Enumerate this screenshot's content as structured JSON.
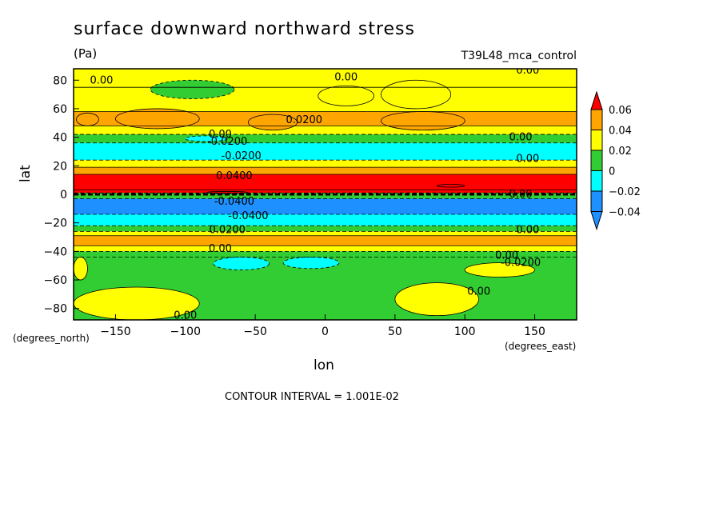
{
  "chart_data": {
    "type": "heatmap",
    "title": "surface downward northward stress",
    "units": "(Pa)",
    "run_label": "T39L48_mca_control",
    "xlabel": "lon",
    "ylabel": "lat",
    "x_units_label": "(degrees_east)",
    "y_units_label": "(degrees_north)",
    "xlim": [
      -180,
      180
    ],
    "ylim": [
      -88,
      88
    ],
    "x_ticks": [
      -150,
      -100,
      -50,
      0,
      50,
      100,
      150
    ],
    "y_ticks": [
      80,
      60,
      40,
      20,
      0,
      -20,
      -40,
      -60,
      -80
    ],
    "contour_interval_text": "CONTOUR INTERVAL = 1.001E-02",
    "colorbar": {
      "levels": [
        -0.04,
        -0.02,
        0,
        0.02,
        0.04,
        0.06
      ],
      "labels": [
        "-0.04",
        "-0.02",
        "0",
        "0.02",
        "0.04",
        "0.06"
      ],
      "colors": [
        "#1e90ff",
        "#00ffff",
        "#32cd32",
        "#ffff00",
        "#ffa500",
        "#ff0000"
      ]
    },
    "zonal_bands": [
      {
        "lat": [
          75,
          88
        ],
        "value": 0.005
      },
      {
        "lat": [
          58,
          75
        ],
        "value": 0.01
      },
      {
        "lat": [
          48,
          58
        ],
        "value": 0.025
      },
      {
        "lat": [
          42,
          48
        ],
        "value": 0.01
      },
      {
        "lat": [
          36,
          42
        ],
        "value": -0.01
      },
      {
        "lat": [
          24,
          36
        ],
        "value": -0.025
      },
      {
        "lat": [
          19,
          24
        ],
        "value": 0.005
      },
      {
        "lat": [
          14,
          19
        ],
        "value": 0.025
      },
      {
        "lat": [
          3,
          14
        ],
        "value": 0.045
      },
      {
        "lat": [
          1,
          3
        ],
        "value": 0.05
      },
      {
        "lat": [
          -3,
          1
        ],
        "value": -0.01
      },
      {
        "lat": [
          -14,
          -3
        ],
        "value": -0.05
      },
      {
        "lat": [
          -22,
          -14
        ],
        "value": -0.035
      },
      {
        "lat": [
          -26,
          -22
        ],
        "value": -0.01
      },
      {
        "lat": [
          -29,
          -26
        ],
        "value": 0.01
      },
      {
        "lat": [
          -36,
          -29
        ],
        "value": 0.03
      },
      {
        "lat": [
          -40,
          -36
        ],
        "value": 0.015
      },
      {
        "lat": [
          -44,
          -40
        ],
        "value": -0.005
      },
      {
        "lat": [
          -88,
          -44
        ],
        "value": -0.01
      }
    ],
    "features": [
      {
        "type": "patch",
        "lon": [
          -125,
          -65
        ],
        "lat": [
          67,
          80
        ],
        "value": -0.01
      },
      {
        "type": "patch",
        "lon": [
          40,
          90
        ],
        "lat": [
          60,
          80
        ],
        "value": 0.005
      },
      {
        "type": "patch",
        "lon": [
          -5,
          35
        ],
        "lat": [
          62,
          76
        ],
        "value": 0.005
      },
      {
        "type": "patch",
        "lon": [
          -178,
          -162
        ],
        "lat": [
          48,
          57
        ],
        "value": 0.025
      },
      {
        "type": "patch",
        "lon": [
          -150,
          -90
        ],
        "lat": [
          46,
          60
        ],
        "value": 0.025
      },
      {
        "type": "patch",
        "lon": [
          -55,
          -20
        ],
        "lat": [
          45,
          56
        ],
        "value": 0.025
      },
      {
        "type": "patch",
        "lon": [
          40,
          100
        ],
        "lat": [
          45,
          58
        ],
        "value": 0.025
      },
      {
        "type": "patch",
        "lon": [
          -100,
          -70
        ],
        "lat": [
          37,
          41
        ],
        "value": -0.03
      },
      {
        "type": "patch",
        "lon": [
          -30,
          10
        ],
        "lat": [
          -52,
          -44
        ],
        "value": -0.03
      },
      {
        "type": "patch",
        "lon": [
          -80,
          -40
        ],
        "lat": [
          -53,
          -44
        ],
        "value": -0.025
      },
      {
        "type": "patch",
        "lon": [
          100,
          150
        ],
        "lat": [
          -58,
          -48
        ],
        "value": 0.005
      },
      {
        "type": "patch",
        "lon": [
          50,
          110
        ],
        "lat": [
          -85,
          -62
        ],
        "value": 0.005
      },
      {
        "type": "patch",
        "lon": [
          -180,
          -90
        ],
        "lat": [
          -88,
          -65
        ],
        "value": 0.005
      },
      {
        "type": "patch",
        "lon": [
          -180,
          -170
        ],
        "lat": [
          -60,
          -44
        ],
        "value": 0.005
      },
      {
        "type": "patch",
        "lon": [
          -85,
          -55
        ],
        "lat": [
          0.5,
          2
        ],
        "value": 0.065
      },
      {
        "type": "patch",
        "lon": [
          80,
          100
        ],
        "lat": [
          5,
          7
        ],
        "value": 0.065
      }
    ],
    "contour_labels": [
      {
        "text": "0.00",
        "lon": -160,
        "lat": 80
      },
      {
        "text": "0.00",
        "lon": 15,
        "lat": 82
      },
      {
        "text": "0.00",
        "lon": 145,
        "lat": 87
      },
      {
        "text": "0.0200",
        "lon": -15,
        "lat": 52
      },
      {
        "text": "0.00",
        "lon": -75,
        "lat": 42
      },
      {
        "text": "-0.0200",
        "lon": -70,
        "lat": 37
      },
      {
        "text": "0.00",
        "lon": 140,
        "lat": 40
      },
      {
        "text": "-0.0200",
        "lon": -60,
        "lat": 27
      },
      {
        "text": "0.0400",
        "lon": -65,
        "lat": 13
      },
      {
        "text": "0.00",
        "lon": 145,
        "lat": 25
      },
      {
        "text": "0.00",
        "lon": 140,
        "lat": 0
      },
      {
        "text": "-0.0400",
        "lon": -65,
        "lat": -5
      },
      {
        "text": "-0.0400",
        "lon": -55,
        "lat": -15
      },
      {
        "text": "0.0200",
        "lon": -70,
        "lat": -25
      },
      {
        "text": "0.00",
        "lon": 145,
        "lat": -25
      },
      {
        "text": "0.00",
        "lon": -75,
        "lat": -38
      },
      {
        "text": "0.00",
        "lon": 130,
        "lat": -43
      },
      {
        "text": "-0.0200",
        "lon": 140,
        "lat": -48
      },
      {
        "text": "0.00",
        "lon": 110,
        "lat": -68
      },
      {
        "text": "0.00",
        "lon": -100,
        "lat": -85
      }
    ]
  }
}
